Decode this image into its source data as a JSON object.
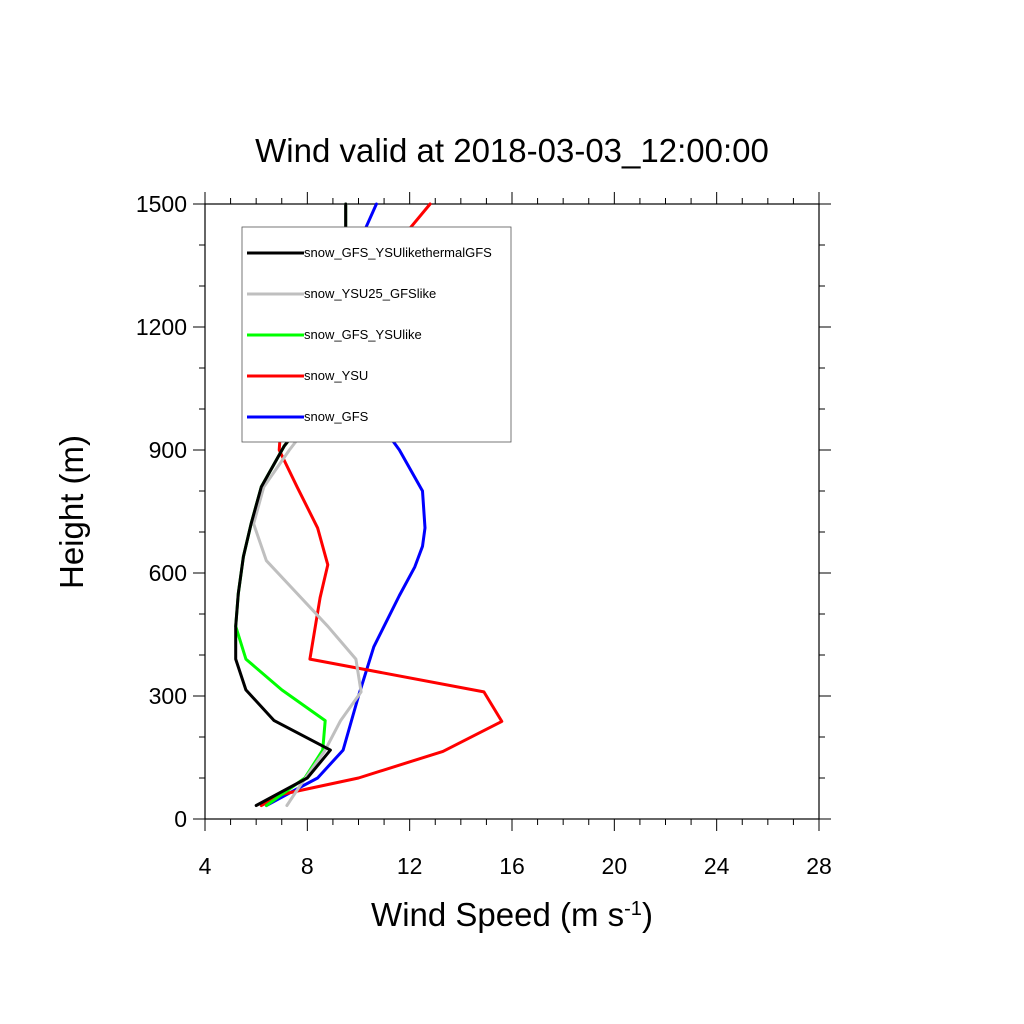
{
  "chart_data": {
    "type": "line",
    "title": "Wind valid at 2018-03-03_12:00:00",
    "xlabel": "Wind Speed (m s",
    "xlabel_sup": "-1",
    "xlabel_end": ")",
    "ylabel": "Height (m)",
    "xlim": [
      4,
      28
    ],
    "ylim": [
      0,
      1500
    ],
    "x_ticks": [
      4,
      8,
      12,
      16,
      20,
      24,
      28
    ],
    "y_ticks": [
      0,
      300,
      600,
      900,
      1200,
      1500
    ],
    "legend_position": "top-left",
    "series": [
      {
        "name": "snow_GFS_YSUlikethermalGFS",
        "color": "#000000",
        "points": [
          [
            6.0,
            33
          ],
          [
            8.0,
            100
          ],
          [
            8.9,
            168
          ],
          [
            6.7,
            240
          ],
          [
            5.6,
            315
          ],
          [
            5.2,
            390
          ],
          [
            5.2,
            470
          ],
          [
            5.3,
            550
          ],
          [
            5.5,
            640
          ],
          [
            5.8,
            720
          ],
          [
            6.2,
            810
          ],
          [
            7.1,
            910
          ],
          [
            8.1,
            990
          ],
          [
            8.8,
            1060
          ],
          [
            9.3,
            1110
          ],
          [
            9.4,
            1200
          ],
          [
            9.5,
            1300
          ],
          [
            9.5,
            1400
          ],
          [
            9.5,
            1500
          ]
        ]
      },
      {
        "name": "snow_YSU25_GFSlike",
        "color": "#bfbfbf",
        "points": [
          [
            7.2,
            33
          ],
          [
            7.7,
            80
          ],
          [
            8.7,
            168
          ],
          [
            9.3,
            240
          ],
          [
            10.1,
            310
          ],
          [
            9.9,
            390
          ],
          [
            8.8,
            470
          ],
          [
            7.6,
            550
          ],
          [
            6.4,
            630
          ],
          [
            5.9,
            720
          ],
          [
            6.3,
            810
          ],
          [
            7.3,
            900
          ],
          [
            8.4,
            990
          ],
          [
            9.0,
            1060
          ],
          [
            9.3,
            1110
          ],
          [
            9.4,
            1200
          ],
          [
            9.5,
            1300
          ],
          [
            9.5,
            1400
          ],
          [
            9.5,
            1500
          ]
        ]
      },
      {
        "name": "snow_GFS_YSUlike",
        "color": "#00ff00",
        "points": [
          [
            6.4,
            33
          ],
          [
            7.9,
            100
          ],
          [
            8.6,
            168
          ],
          [
            8.7,
            240
          ],
          [
            7.0,
            315
          ],
          [
            5.6,
            390
          ],
          [
            5.2,
            470
          ],
          [
            5.3,
            550
          ],
          [
            5.5,
            640
          ],
          [
            5.8,
            720
          ],
          [
            6.2,
            810
          ],
          [
            7.1,
            910
          ],
          [
            8.1,
            990
          ],
          [
            8.8,
            1060
          ],
          [
            9.3,
            1110
          ],
          [
            9.4,
            1200
          ],
          [
            9.5,
            1300
          ],
          [
            9.5,
            1400
          ],
          [
            9.5,
            1500
          ]
        ]
      },
      {
        "name": "snow_YSU",
        "color": "#ff0000",
        "points": [
          [
            6.2,
            33
          ],
          [
            7.0,
            60
          ],
          [
            10.0,
            100
          ],
          [
            13.3,
            165
          ],
          [
            15.6,
            238
          ],
          [
            14.9,
            310
          ],
          [
            8.1,
            390
          ],
          [
            8.5,
            540
          ],
          [
            8.8,
            620
          ],
          [
            8.4,
            710
          ],
          [
            7.6,
            810
          ],
          [
            6.9,
            900
          ],
          [
            7.0,
            990
          ],
          [
            7.7,
            1080
          ],
          [
            8.8,
            1190
          ],
          [
            9.9,
            1280
          ],
          [
            11.0,
            1370
          ],
          [
            12.0,
            1440
          ],
          [
            12.8,
            1500
          ]
        ]
      },
      {
        "name": "snow_GFS",
        "color": "#0000ff",
        "points": [
          [
            6.4,
            33
          ],
          [
            7.5,
            70
          ],
          [
            8.4,
            100
          ],
          [
            9.4,
            168
          ],
          [
            10.0,
            300
          ],
          [
            10.6,
            420
          ],
          [
            11.6,
            545
          ],
          [
            12.2,
            615
          ],
          [
            12.5,
            665
          ],
          [
            12.6,
            710
          ],
          [
            12.5,
            800
          ],
          [
            11.6,
            900
          ],
          [
            10.5,
            995
          ],
          [
            9.6,
            1090
          ],
          [
            8.9,
            1170
          ],
          [
            8.7,
            1250
          ],
          [
            9.4,
            1350
          ],
          [
            10.2,
            1430
          ],
          [
            10.7,
            1500
          ]
        ]
      }
    ]
  }
}
